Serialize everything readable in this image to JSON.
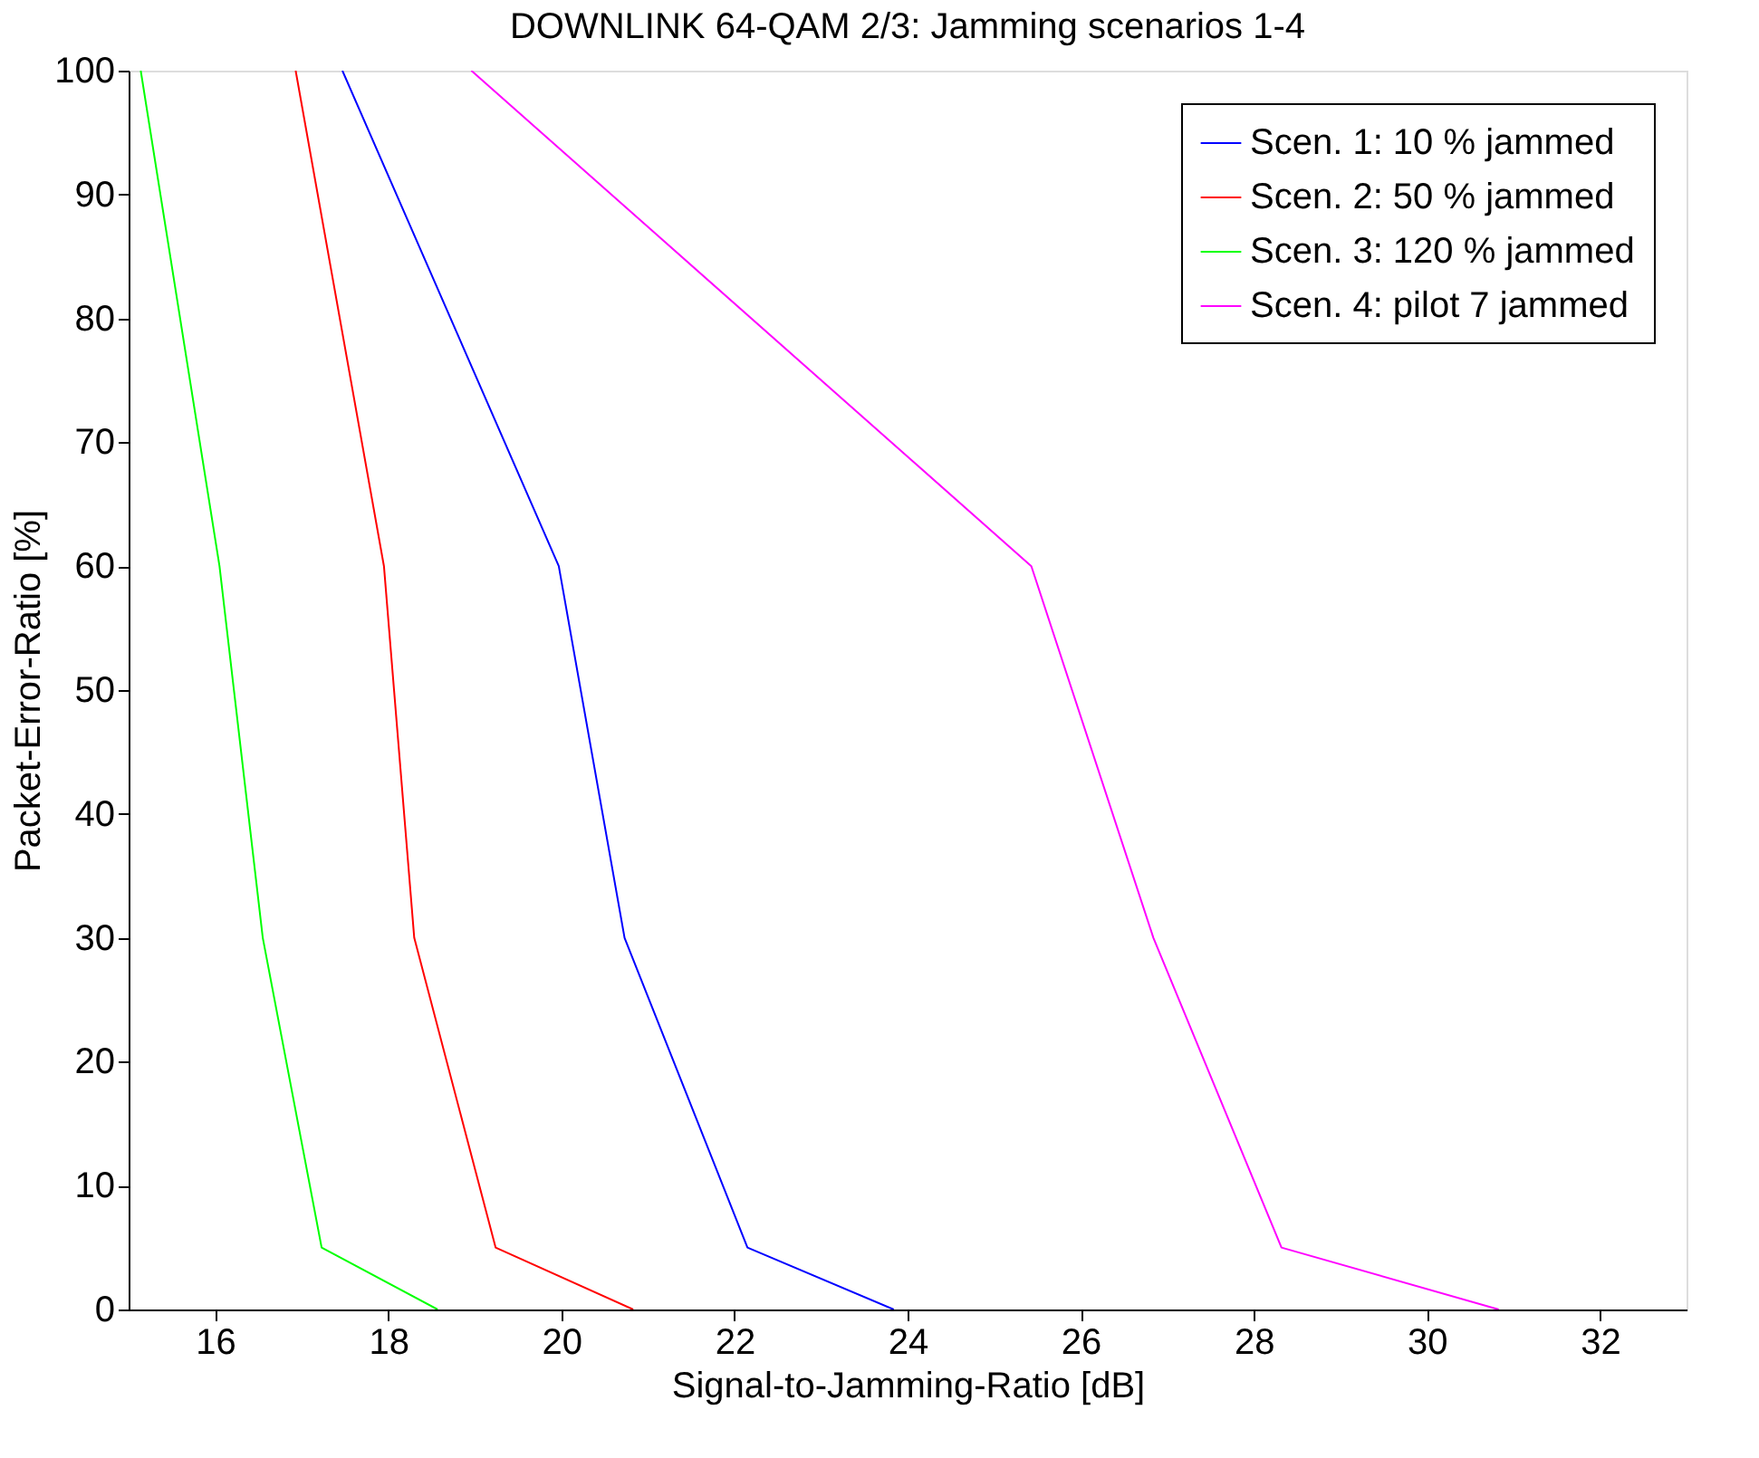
{
  "chart_data": {
    "type": "line",
    "title": "DOWNLINK 64-QAM 2/3: Jamming scenarios 1-4",
    "xlabel": "Signal-to-Jamming-Ratio [dB]",
    "ylabel": "Packet-Error-Ratio [%]",
    "xlim": [
      15,
      33
    ],
    "ylim": [
      0,
      100
    ],
    "xticks": [
      16,
      18,
      20,
      22,
      24,
      26,
      28,
      30,
      32
    ],
    "yticks": [
      0,
      10,
      20,
      30,
      40,
      50,
      60,
      70,
      80,
      90,
      100
    ],
    "grid": false,
    "legend": "top right",
    "marker": "none",
    "line_style": "solid",
    "series": [
      {
        "name": "Scen. 1: 10 % jammed",
        "color": "#0000ff",
        "x": [
          17.47,
          19.97,
          20.73,
          22.15,
          23.84
        ],
        "values": [
          100,
          60,
          30,
          5,
          0
        ]
      },
      {
        "name": "Scen. 2: 50 % jammed",
        "color": "#ff0000",
        "x": [
          16.93,
          17.95,
          18.3,
          19.24,
          20.83
        ],
        "values": [
          100,
          60,
          30,
          5,
          0
        ]
      },
      {
        "name": "Scen. 3: 120 % jammed",
        "color": "#00ff00",
        "x": [
          15.14,
          16.05,
          16.55,
          17.23,
          18.57
        ],
        "values": [
          100,
          60,
          30,
          5,
          0
        ]
      },
      {
        "name": "Scen. 4: pilot 7 jammed",
        "color": "#ff00ff",
        "x": [
          18.96,
          25.43,
          26.84,
          28.32,
          30.83
        ],
        "values": [
          100,
          60,
          30,
          5,
          0
        ]
      }
    ]
  }
}
